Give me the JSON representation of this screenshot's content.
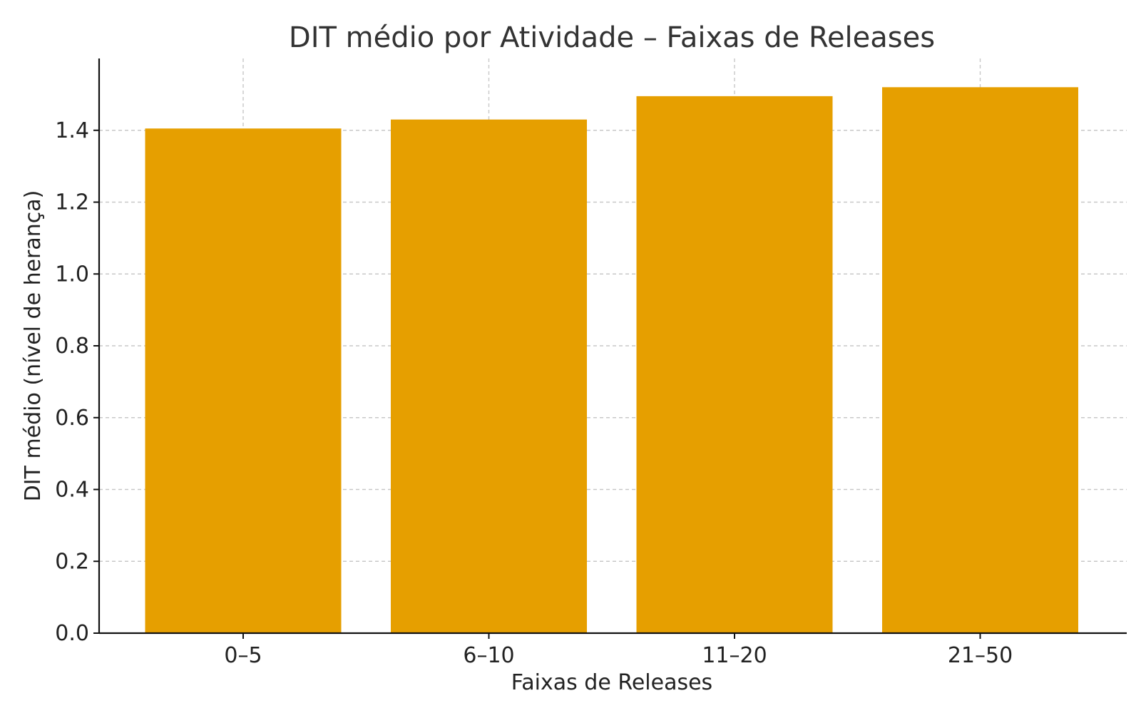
{
  "chart_data": {
    "type": "bar",
    "title": "DIT médio por Atividade – Faixas de Releases",
    "xlabel": "Faixas de Releases",
    "ylabel": "DIT médio (nível de herança)",
    "categories": [
      "0–5",
      "6–10",
      "11–20",
      "21–50"
    ],
    "values": [
      1.405,
      1.43,
      1.495,
      1.52
    ],
    "ylim": [
      0,
      1.6
    ],
    "yticks": [
      "0.0",
      "0.2",
      "0.4",
      "0.6",
      "0.8",
      "1.0",
      "1.2",
      "1.4"
    ],
    "grid": true,
    "bar_color": "#E69F00"
  }
}
